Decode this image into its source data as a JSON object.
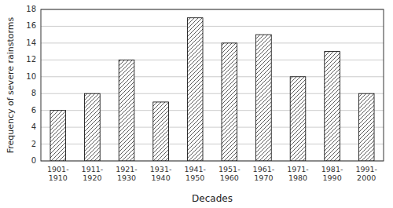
{
  "chart_data": {
    "type": "bar",
    "categories": [
      "1901-\n1910",
      "1911-\n1920",
      "1921-\n1930",
      "1931-\n1940",
      "1941-\n1950",
      "1951-\n1960",
      "1961-\n1970",
      "1971-\n1980",
      "1981-\n1990",
      "1991-\n2000"
    ],
    "values": [
      6,
      8,
      12,
      7,
      17,
      14,
      15,
      10,
      13,
      8
    ],
    "color": "#ffffff",
    "xlabel": "Decades",
    "ylabel": "Frequency of severe rainstorms",
    "ylim": [
      0,
      18
    ],
    "yticks": [
      0,
      2,
      4,
      6,
      8,
      10,
      12,
      14,
      16,
      18
    ],
    "grid": true
  }
}
